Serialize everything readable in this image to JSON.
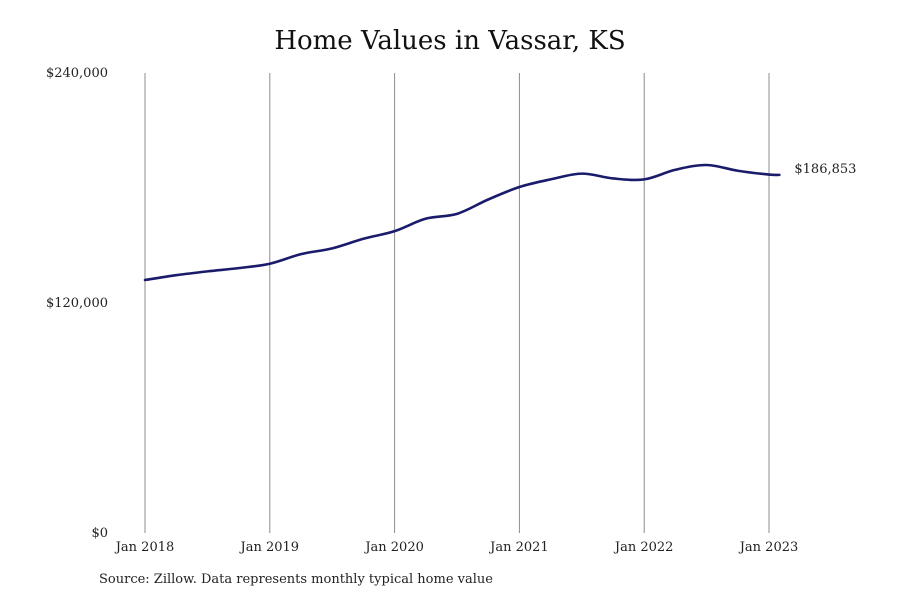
{
  "chart_data": {
    "type": "line",
    "title": "Home Values in Vassar, KS",
    "source": "Source: Zillow. Data represents monthly typical home value",
    "xlabel": "",
    "ylabel": "",
    "x_ticks": [
      "Jan 2018",
      "Jan 2019",
      "Jan 2020",
      "Jan 2021",
      "Jan 2022",
      "Jan 2023"
    ],
    "y_ticks": [
      {
        "value": 0,
        "label": "$0"
      },
      {
        "value": 120000,
        "label": "$120,000"
      },
      {
        "value": 240000,
        "label": "$240,000"
      }
    ],
    "ylim": [
      0,
      240000
    ],
    "xlim": [
      "2018-01",
      "2023-01"
    ],
    "grid": "vertical",
    "line_color": "#1b1b6b",
    "end_label": "$186,853",
    "series": [
      {
        "name": "",
        "points": [
          {
            "x": "2018-01",
            "y": 132000
          },
          {
            "x": "2018-04",
            "y": 134500
          },
          {
            "x": "2018-07",
            "y": 136500
          },
          {
            "x": "2018-10",
            "y": 138200
          },
          {
            "x": "2019-01",
            "y": 140500
          },
          {
            "x": "2019-04",
            "y": 145500
          },
          {
            "x": "2019-07",
            "y": 148500
          },
          {
            "x": "2019-10",
            "y": 153500
          },
          {
            "x": "2020-01",
            "y": 157500
          },
          {
            "x": "2020-04",
            "y": 164000
          },
          {
            "x": "2020-07",
            "y": 166500
          },
          {
            "x": "2020-10",
            "y": 174000
          },
          {
            "x": "2021-01",
            "y": 180500
          },
          {
            "x": "2021-04",
            "y": 184500
          },
          {
            "x": "2021-07",
            "y": 187500
          },
          {
            "x": "2021-10",
            "y": 185000
          },
          {
            "x": "2022-01",
            "y": 184500
          },
          {
            "x": "2022-04",
            "y": 189500
          },
          {
            "x": "2022-07",
            "y": 192000
          },
          {
            "x": "2022-10",
            "y": 189000
          },
          {
            "x": "2023-01",
            "y": 187000
          },
          {
            "x": "2023-02",
            "y": 186853
          }
        ]
      }
    ]
  }
}
